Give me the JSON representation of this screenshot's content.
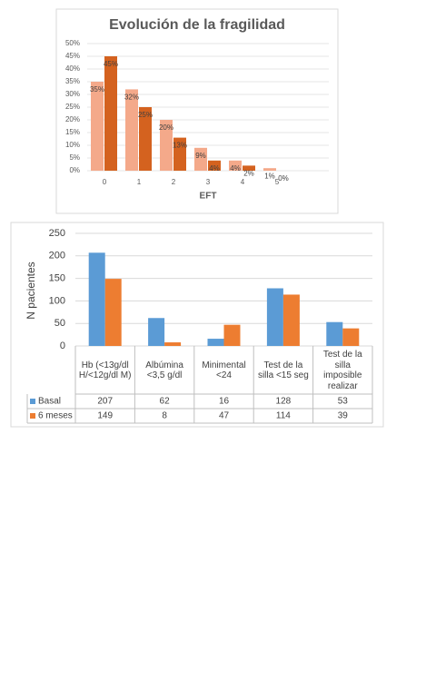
{
  "chart_data": [
    {
      "type": "bar",
      "title": "Evolución de la fragilidad",
      "x_label": "EFT",
      "categories": [
        "0",
        "1",
        "2",
        "3",
        "4",
        "5"
      ],
      "series": [
        {
          "color": "#f4a98a",
          "values": [
            35,
            32,
            20,
            9,
            4,
            1
          ],
          "value_labels": [
            "35%",
            "32%",
            "20%",
            "9%",
            "4%",
            "1%"
          ]
        },
        {
          "color": "#d4621f",
          "values": [
            45,
            25,
            13,
            4,
            2,
            0
          ],
          "value_labels": [
            "45%",
            "25%",
            "13%",
            "4%",
            "2%",
            "0%"
          ]
        }
      ],
      "ylim": [
        0,
        50
      ],
      "yticks": [
        {
          "value": 0,
          "label": "0%"
        },
        {
          "value": 5,
          "label": "5%"
        },
        {
          "value": 10,
          "label": "10%"
        },
        {
          "value": 15,
          "label": "15%"
        },
        {
          "value": 20,
          "label": "20%"
        },
        {
          "value": 25,
          "label": "25%"
        },
        {
          "value": 30,
          "label": "30%"
        },
        {
          "value": 35,
          "label": "35%"
        },
        {
          "value": 40,
          "label": "40%"
        },
        {
          "value": 45,
          "label": "45%"
        },
        {
          "value": 50,
          "label": "50%"
        }
      ],
      "grid": true
    },
    {
      "type": "bar",
      "y_label": "N pacientes",
      "categories": [
        "Hb (<13g/dl H/<12g/dl M)",
        "Albúmina <3,5 g/dl",
        "Minimental <24",
        "Test de la silla <15 seg",
        "Test de la silla imposible realizar"
      ],
      "series": [
        {
          "name": "Basal",
          "color": "#5b9bd5",
          "values": [
            207,
            62,
            16,
            128,
            53
          ]
        },
        {
          "name": "6 meses",
          "color": "#ed7d31",
          "values": [
            149,
            8,
            47,
            114,
            39
          ]
        }
      ],
      "ylim": [
        0,
        250
      ],
      "yticks": [
        0,
        50,
        100,
        150,
        200,
        250
      ],
      "grid": true
    }
  ]
}
